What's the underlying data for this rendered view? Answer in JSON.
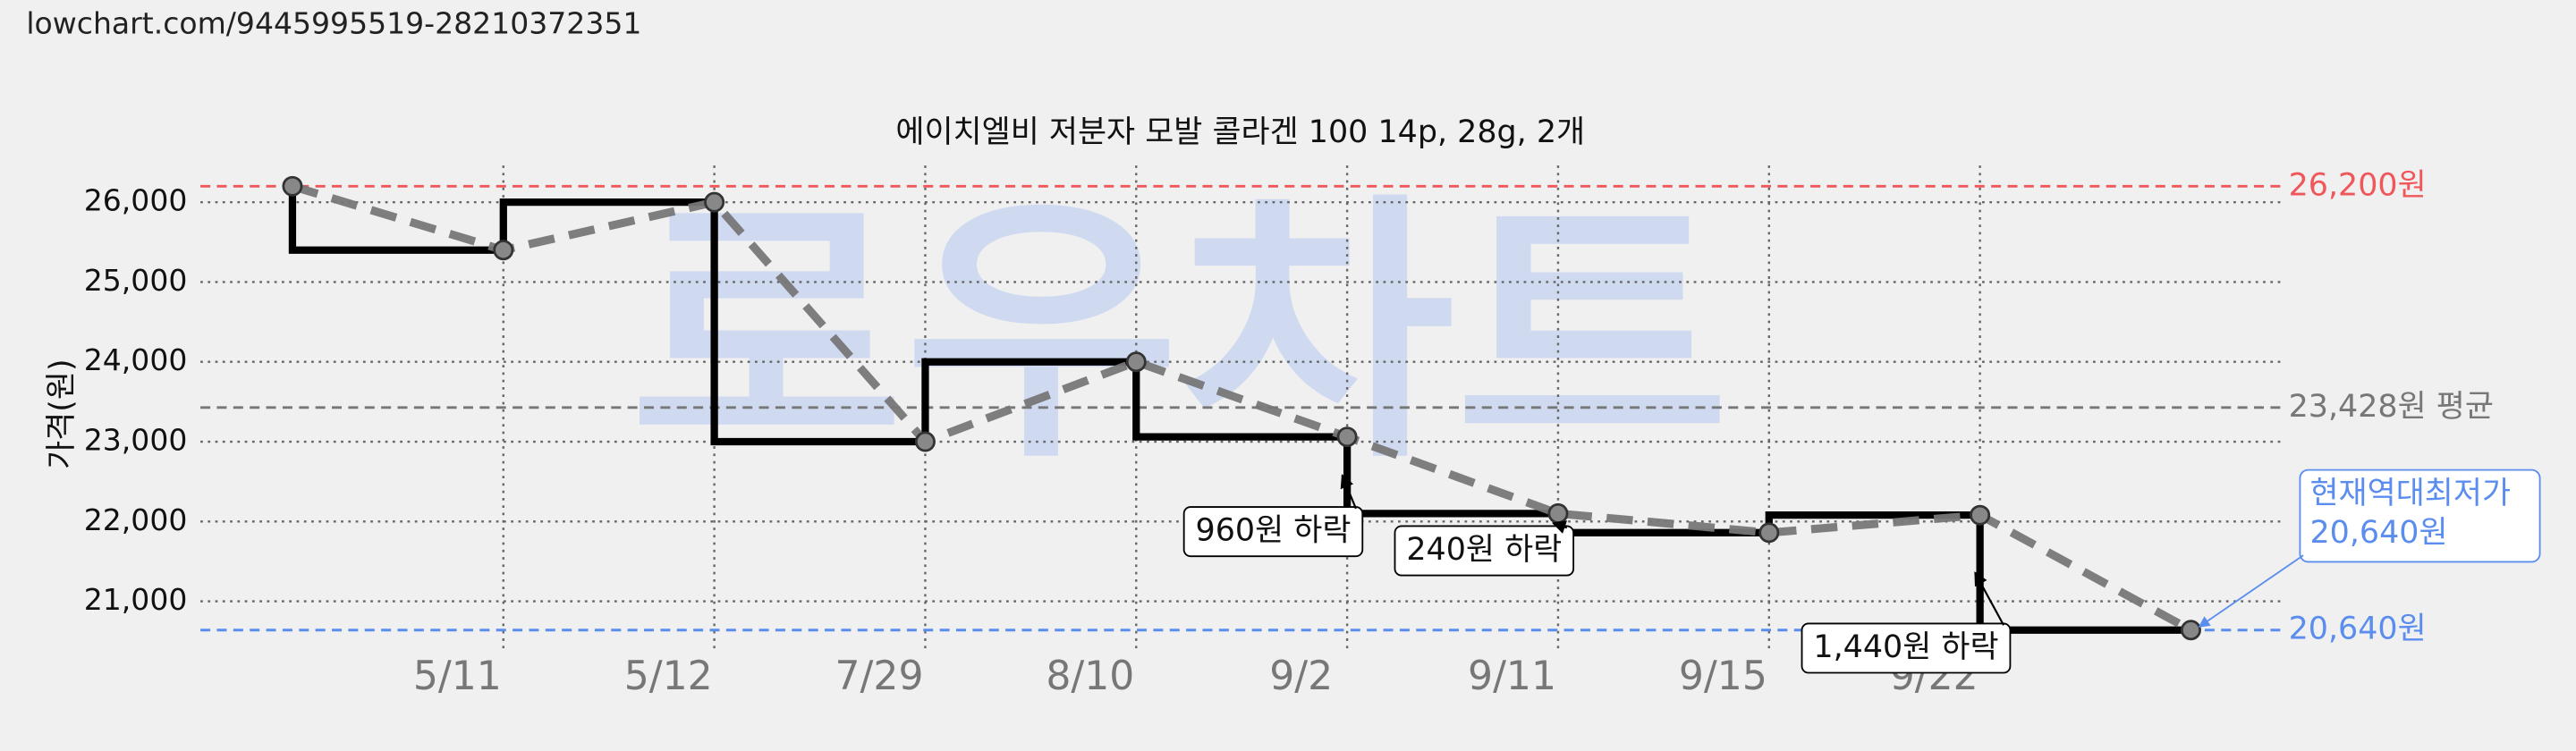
{
  "url": "lowchart.com/9445995519-28210372351",
  "chart_data": {
    "type": "step-line",
    "title": "에이치엘비 저분자 모발 콜라겐 100 14p, 28g, 2개",
    "ylabel": "가격(원)",
    "watermark": "로우차트",
    "categories": [
      null,
      "5/11",
      "5/12",
      "7/29",
      "8/10",
      "9/2",
      "9/11",
      "9/15",
      "9/22",
      null
    ],
    "values": [
      26200,
      25400,
      26000,
      23000,
      24000,
      23060,
      22100,
      21860,
      22080,
      20640
    ],
    "color": "#000000",
    "trend_color": "#777777",
    "ylim": [
      20400,
      26460
    ],
    "yticks": [
      {
        "value": 21000,
        "label": "21,000"
      },
      {
        "value": 22000,
        "label": "22,000"
      },
      {
        "value": 23000,
        "label": "23,000"
      },
      {
        "value": 24000,
        "label": "24,000"
      },
      {
        "value": 25000,
        "label": "25,000"
      },
      {
        "value": 26000,
        "label": "26,000"
      }
    ],
    "grid": true,
    "reference_lines": [
      {
        "value": 26200,
        "label": "26,200원",
        "color": "#f0575b"
      },
      {
        "value": 23428,
        "label": "23,428원 평균",
        "color": "#777777"
      },
      {
        "value": 20640,
        "label": "20,640원",
        "color": "#5b8def"
      }
    ],
    "annotations": [
      {
        "value": 960,
        "label": "960원 하락"
      },
      {
        "value": 240,
        "label": "240원 하락"
      },
      {
        "value": 1440,
        "label": "1,440원 하락"
      }
    ],
    "callout": {
      "value": 20640,
      "lines": [
        "현재역대최저가",
        "20,640원"
      ],
      "color": "#5b8def"
    }
  }
}
